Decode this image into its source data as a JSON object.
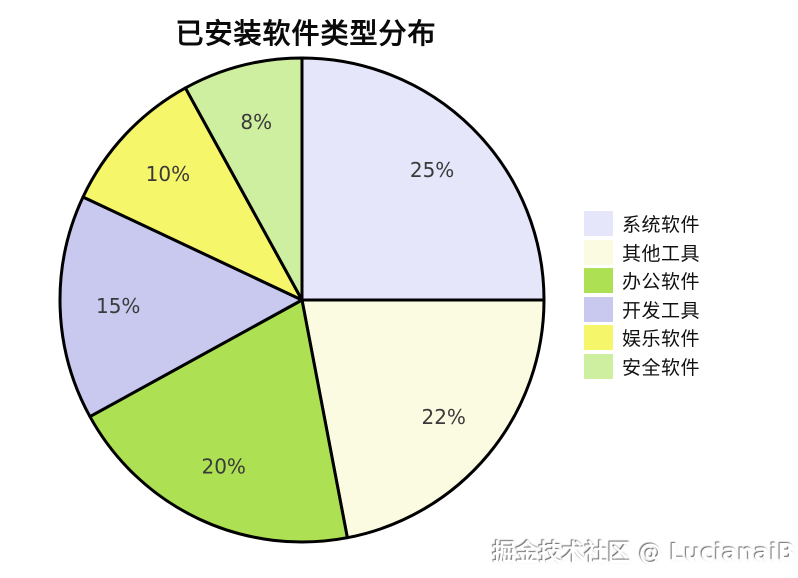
{
  "title": "已安装软件类型分布",
  "watermark": "掘金技术社区 @ LucianaiB",
  "chart_data": {
    "type": "pie",
    "title": "已安装软件类型分布",
    "labels": [
      "系统软件",
      "其他工具",
      "办公软件",
      "开发工具",
      "娱乐软件",
      "安全软件"
    ],
    "values": [
      25,
      22,
      20,
      15,
      10,
      8
    ],
    "pct_labels": [
      "25%",
      "22%",
      "20%",
      "15%",
      "10%",
      "8%"
    ],
    "colors": [
      "#e6e6fa",
      "#fbfbe2",
      "#ade052",
      "#c9c9f0",
      "#f6f66b",
      "#cfefa0"
    ],
    "edge_color": "#000000",
    "edge_width": 3,
    "start_angle_deg": 0,
    "direction": "clockwise",
    "pct_distance": 0.76,
    "pct_label_color": "#3a3a3a",
    "legend_position": "right",
    "legend_slice_names": [
      "system-software",
      "other-tools",
      "office-software",
      "dev-tools",
      "entertainment-software",
      "security-software"
    ]
  }
}
